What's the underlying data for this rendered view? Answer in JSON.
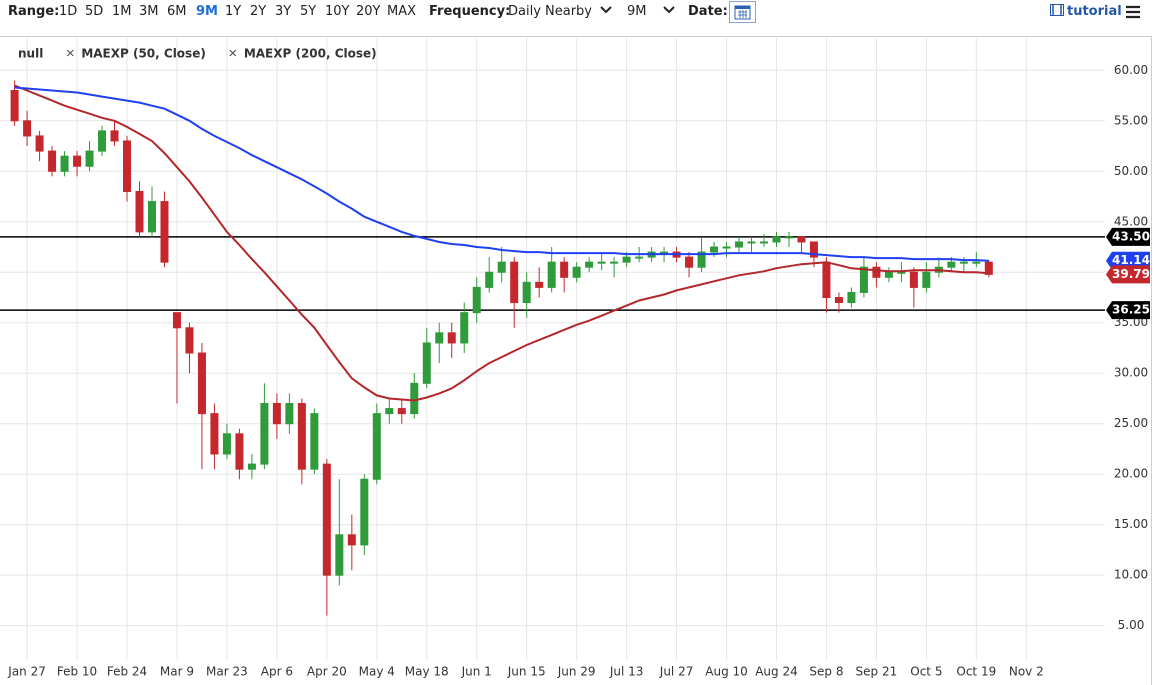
{
  "toolbar": {
    "range_label": "Range:",
    "ranges": [
      "1D",
      "5D",
      "1M",
      "3M",
      "6M",
      "9M",
      "1Y",
      "2Y",
      "3Y",
      "5Y",
      "10Y",
      "20Y",
      "MAX"
    ],
    "selected_range": "9M",
    "frequency_label": "Frequency:",
    "frequency": "Daily Nearby",
    "period": "9M",
    "date_label": "Date:",
    "tutorial": "tutorial"
  },
  "chart_data": {
    "type": "candlestick",
    "name": "null",
    "categories": [
      null,
      "Jan 27",
      null,
      null,
      null,
      "Feb 10",
      null,
      null,
      null,
      "Feb 24",
      null,
      null,
      null,
      "Mar 9",
      null,
      null,
      null,
      "Mar 23",
      null,
      null,
      null,
      "Apr 6",
      null,
      null,
      null,
      "Apr 20",
      null,
      null,
      null,
      "May 4",
      null,
      null,
      null,
      "May 18",
      null,
      null,
      null,
      "Jun 1",
      null,
      null,
      null,
      "Jun 15",
      null,
      null,
      null,
      "Jun 29",
      null,
      null,
      null,
      "Jul 13",
      null,
      null,
      null,
      "Jul 27",
      null,
      null,
      null,
      "Aug 10",
      null,
      null,
      null,
      "Aug 24",
      null,
      null,
      null,
      "Sep 8",
      null,
      null,
      null,
      "Sep 21",
      null,
      null,
      null,
      "Oct 5",
      null,
      null,
      null,
      "Oct 19",
      null,
      null,
      null,
      "Nov 2"
    ],
    "open": [
      58,
      55,
      53.5,
      52,
      50,
      51.5,
      50.5,
      52,
      54,
      53,
      48,
      44,
      47,
      36,
      34.5,
      32,
      26,
      22,
      24,
      20.5,
      21,
      27,
      25,
      27,
      20.5,
      21,
      10,
      14,
      13,
      19.5,
      26,
      26.5,
      26,
      29,
      33,
      34,
      33,
      36,
      38.5,
      40,
      41,
      37,
      39,
      38.5,
      41,
      39.5,
      40.5,
      41,
      41,
      41,
      41.5,
      41.5,
      42,
      42,
      41.5,
      40.5,
      42,
      42.5,
      42.5,
      43,
      43,
      43,
      43.5,
      43.5,
      43,
      41,
      37.5,
      37,
      38,
      40.5,
      39.5,
      40,
      40,
      38.5,
      40,
      40.5,
      41,
      41,
      41,
      null,
      null,
      null
    ],
    "high": [
      59,
      56,
      54,
      52.5,
      52,
      52,
      53,
      54.5,
      55,
      53.5,
      49,
      48.5,
      48,
      36,
      35,
      33,
      27,
      25,
      24.5,
      22,
      29,
      28,
      28,
      27.5,
      26.5,
      21.5,
      19.5,
      16,
      20,
      27,
      27.5,
      27.5,
      30,
      34.5,
      35,
      35,
      37,
      39.5,
      41.5,
      42.5,
      41.5,
      40,
      40.5,
      42.5,
      41.5,
      41,
      41.5,
      41.8,
      41.5,
      42,
      42.5,
      42.5,
      42.5,
      42.5,
      42,
      43.5,
      43,
      43,
      43.5,
      43.5,
      43.8,
      44,
      44,
      43.5,
      43,
      41.5,
      38,
      38.5,
      41.5,
      41,
      40.5,
      41,
      40.5,
      41,
      41.5,
      41.5,
      41.5,
      42,
      41.2,
      null,
      null,
      null
    ],
    "low": [
      54.5,
      52.5,
      51,
      49.5,
      49.5,
      49.5,
      50,
      51.5,
      52.5,
      47,
      43.5,
      43.5,
      40.5,
      27,
      30,
      20.5,
      20.5,
      21.5,
      19.5,
      19.5,
      20.5,
      23.5,
      24,
      19,
      20,
      6,
      9,
      10.5,
      12,
      19,
      25,
      25,
      25.5,
      28.5,
      31,
      31.5,
      32,
      35,
      38,
      39,
      34.5,
      35.5,
      37.5,
      38,
      38,
      39,
      40,
      40.2,
      39.5,
      40.5,
      41,
      41,
      41,
      41,
      39.5,
      40,
      41.5,
      41.5,
      42,
      42,
      42.5,
      42.5,
      42.5,
      42,
      40.5,
      36,
      36,
      36.5,
      37.5,
      38.5,
      39,
      39,
      36.5,
      38,
      39.5,
      40,
      40,
      40.5,
      39.5,
      null,
      null,
      null
    ],
    "close": [
      55,
      53.5,
      52,
      50,
      51.5,
      50.5,
      52,
      54,
      53,
      48,
      44,
      47,
      41,
      34.5,
      32,
      26,
      22,
      24,
      20.5,
      21,
      27,
      25,
      27,
      20.5,
      26,
      10,
      14,
      13,
      19.5,
      26,
      26.5,
      26,
      29,
      33,
      34,
      33,
      36,
      38.5,
      40,
      41,
      37,
      39,
      38.5,
      41,
      39.5,
      40.5,
      41,
      41,
      41,
      41.5,
      41.5,
      42,
      42,
      41.5,
      40.5,
      42,
      42.5,
      42.5,
      43,
      43,
      43,
      43.5,
      43.5,
      43,
      41.5,
      37.5,
      37,
      38,
      40.5,
      39.5,
      40,
      40,
      38.5,
      40,
      40.5,
      41,
      41,
      41,
      39.79,
      null,
      null,
      null
    ],
    "up_color": "#2f9b3a",
    "down_color": "#c4282d",
    "series": [
      {
        "name": "MAEXP (50, Close)",
        "color": "#b3262a",
        "values": [
          58.5,
          58,
          57.5,
          57,
          56.5,
          56.1,
          55.7,
          55.3,
          55.0,
          54.4,
          53.7,
          53.0,
          51.8,
          50.4,
          49.0,
          47.4,
          45.7,
          44.0,
          42.7,
          41.3,
          40.0,
          38.6,
          37.2,
          35.8,
          34.5,
          32.8,
          31.1,
          29.5,
          28.6,
          27.8,
          27.5,
          27.4,
          27.3,
          27.6,
          28.0,
          28.5,
          29.3,
          30.2,
          31.0,
          31.6,
          32.2,
          32.8,
          33.3,
          33.8,
          34.3,
          34.8,
          35.2,
          35.7,
          36.2,
          36.7,
          37.2,
          37.5,
          37.8,
          38.2,
          38.5,
          38.8,
          39.1,
          39.4,
          39.7,
          39.9,
          40.1,
          40.4,
          40.6,
          40.8,
          40.9,
          41.0,
          40.7,
          40.4,
          40.3,
          40.2,
          40.1,
          40.1,
          40.2,
          40.2,
          40.2,
          40.1,
          40.0,
          40.0,
          39.9,
          null,
          null,
          null
        ]
      },
      {
        "name": "MAEXP (200, Close)",
        "color": "#1f3ff2",
        "values": [
          58.3,
          58.2,
          58.1,
          58.0,
          57.9,
          57.8,
          57.6,
          57.4,
          57.2,
          57.0,
          56.8,
          56.5,
          56.2,
          55.6,
          55.0,
          54.2,
          53.5,
          52.9,
          52.3,
          51.6,
          51.0,
          50.4,
          49.8,
          49.2,
          48.5,
          47.8,
          47.0,
          46.3,
          45.5,
          45.0,
          44.5,
          44.0,
          43.6,
          43.3,
          43.0,
          42.8,
          42.7,
          42.5,
          42.4,
          42.2,
          42.1,
          42.0,
          42.0,
          41.9,
          41.9,
          41.9,
          41.9,
          41.9,
          41.9,
          41.8,
          41.8,
          41.8,
          41.8,
          41.8,
          41.8,
          41.8,
          41.8,
          41.9,
          41.9,
          41.9,
          41.9,
          41.9,
          41.9,
          41.9,
          41.8,
          41.7,
          41.6,
          41.5,
          41.5,
          41.4,
          41.4,
          41.4,
          41.3,
          41.3,
          41.3,
          41.3,
          41.2,
          41.2,
          41.14,
          null,
          null,
          null
        ]
      }
    ],
    "hlines": [
      {
        "value": 43.5,
        "label": "43.50"
      },
      36.25
    ],
    "ylim": [
      1.6,
      63.2
    ],
    "yticks": [
      {
        "value": 5,
        "label": "5.00"
      },
      {
        "value": 10,
        "label": "10.00"
      },
      {
        "value": 15,
        "label": "15.00"
      },
      {
        "value": 20,
        "label": "20.00"
      },
      {
        "value": 25,
        "label": "25.00"
      },
      {
        "value": 30,
        "label": "30.00"
      },
      {
        "value": 35,
        "label": "35.00"
      },
      {
        "value": 40,
        "label": "40.00"
      },
      {
        "value": 45,
        "label": "45.00"
      },
      {
        "value": 50,
        "label": "50.00"
      },
      {
        "value": 55,
        "label": "55.00"
      },
      {
        "value": 60,
        "label": "60.00"
      }
    ],
    "grid": true
  }
}
